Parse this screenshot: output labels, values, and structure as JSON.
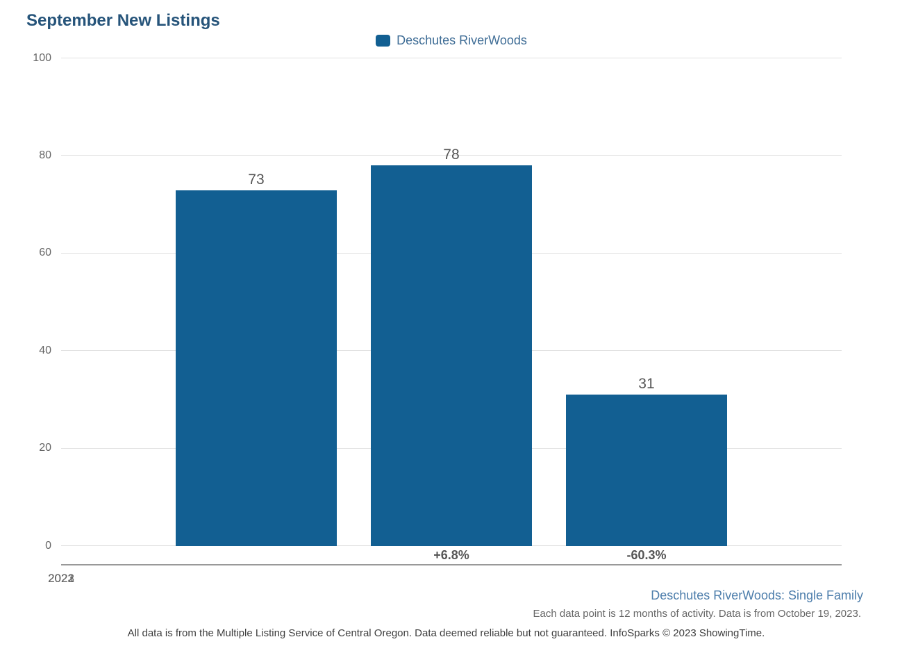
{
  "header": {
    "title": "September New Listings"
  },
  "legend": {
    "items": [
      {
        "label": "Deschutes RiverWoods",
        "color": "#125f92"
      }
    ]
  },
  "chart_data": {
    "type": "bar",
    "title": "September New Listings",
    "categories": [
      "2021",
      "2022",
      "2023"
    ],
    "series": [
      {
        "name": "Deschutes RiverWoods",
        "values": [
          73,
          78,
          31
        ],
        "color": "#125f92"
      }
    ],
    "value_labels": [
      "73",
      "78",
      "31"
    ],
    "pct_change_labels": [
      "",
      "+6.8%",
      "-60.3%"
    ],
    "xlabel": "",
    "ylabel": "",
    "ylim": [
      0,
      100
    ],
    "yticks": [
      0,
      20,
      40,
      60,
      80,
      100
    ],
    "grid": true,
    "legend_position": "top-center"
  },
  "footer": {
    "series_note": "Deschutes RiverWoods: Single Family",
    "data_note": "Each data point is 12 months of activity. Data is from October 19, 2023.",
    "disclaimer": "All data is from the Multiple Listing Service of Central Oregon. Data deemed reliable but not guaranteed. InfoSparks © 2023 ShowingTime."
  },
  "colors": {
    "bar": "#125f92",
    "title_text": "#26547a",
    "legend_text": "#3f6d96",
    "axis_text": "#666666",
    "value_text": "#555555",
    "pct_text": "#555555",
    "gridline": "#e1e1e1",
    "axis_line": "#999999",
    "footer_link": "#4c7dab",
    "footer_text": "#666666",
    "disclaimer_text": "#3e3e3e"
  }
}
